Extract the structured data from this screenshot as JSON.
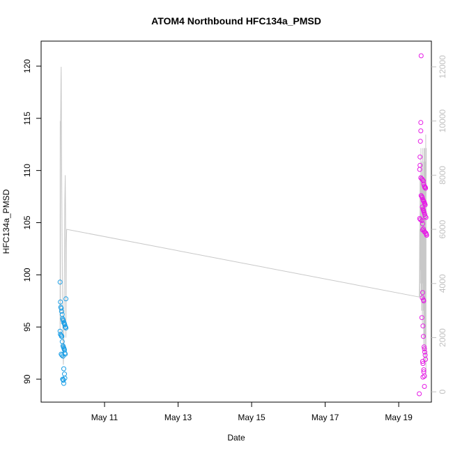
{
  "chart_data": {
    "type": "scatter",
    "title": "ATOM4 Northbound HFC134a_PMSD",
    "xlabel": "Date",
    "ylabel": "HFC134a_PMSD",
    "y2label": "",
    "x_origin": "May 9",
    "xlim": [
      "May 9, 06:36",
      "May 19, 21:20"
    ],
    "ylim": [
      87.8,
      122.4
    ],
    "y2lim": [
      -380,
      12950
    ],
    "x_ticks": [
      {
        "x": "May 11",
        "label": "May 11"
      },
      {
        "x": "May 13",
        "label": "May 13"
      },
      {
        "x": "May 15",
        "label": "May 15"
      },
      {
        "x": "May 17",
        "label": "May 17"
      },
      {
        "x": "May 19",
        "label": "May 19"
      }
    ],
    "y_ticks": [
      90,
      95,
      100,
      105,
      110,
      115,
      120
    ],
    "y2_ticks": [
      0,
      2000,
      4000,
      6000,
      8000,
      10000,
      12000
    ],
    "grid": false,
    "legend": "none",
    "colors": {
      "series1": "#1a9ee6",
      "series2": "#e61ae6",
      "altitude_line": "#c8c8c8",
      "right_axis": "#c0c0c0"
    },
    "series": [
      {
        "color": "#1a9ee6",
        "x": [
          "May 9, 18:58",
          "May 9, 19:12",
          "May 9, 19:26",
          "May 9, 19:41",
          "May 9, 19:55",
          "May 9, 20:24",
          "May 9, 20:38",
          "May 9, 20:53",
          "May 9, 21:07",
          "May 9, 21:22",
          "May 9, 21:36",
          "May 9, 21:50",
          "May 9, 22:05",
          "May 9, 22:19",
          "May 9, 22:34",
          "May 9, 22:48",
          "May 9, 18:58",
          "May 9, 19:12",
          "May 9, 19:41",
          "May 9, 19:55",
          "May 9, 20:10",
          "May 9, 20:24",
          "May 9, 20:53",
          "May 9, 21:07",
          "May 9, 21:22",
          "May 9, 21:36",
          "May 9, 21:50",
          "May 9, 22:05",
          "May 9, 22:19",
          "May 9, 19:41",
          "May 9, 20:10",
          "May 9, 20:53",
          "May 9, 21:22",
          "May 9, 21:50",
          "May 9, 22:05",
          "May 9, 20:38",
          "May 9, 20:53",
          "May 9, 21:07",
          "May 9, 21:22",
          "May 9, 22:48"
        ],
        "y": [
          99.3,
          97.4,
          96.9,
          96.8,
          96.5,
          96.2,
          95.8,
          95.7,
          95.6,
          95.4,
          95.4,
          95.3,
          95.2,
          95.0,
          95.0,
          94.9,
          94.6,
          94.3,
          94.2,
          94.1,
          94.1,
          93.6,
          93.2,
          93.1,
          93.0,
          92.9,
          92.8,
          92.5,
          92.4,
          92.4,
          92.3,
          92.2,
          91.0,
          90.5,
          90.1,
          90.0,
          90.0,
          89.9,
          89.6,
          97.7
        ]
      },
      {
        "color": "#e61ae6",
        "x": [
          "May 19, 14:38",
          "May 19, 14:24",
          "May 19, 14:24",
          "May 19, 14:09",
          "May 19, 13:55",
          "May 19, 13:55",
          "May 19, 13:41",
          "May 19, 14:24",
          "May 19, 15:07",
          "May 19, 15:36",
          "May 19, 16:05",
          "May 19, 16:19",
          "May 19, 16:48",
          "May 19, 17:02",
          "May 19, 17:17",
          "May 19, 17:31",
          "May 19, 14:38",
          "May 19, 15:07",
          "May 19, 15:22",
          "May 19, 15:50",
          "May 19, 16:05",
          "May 19, 16:34",
          "May 19, 16:48",
          "May 19, 17:02",
          "May 19, 17:17",
          "May 19, 15:22",
          "May 19, 15:50",
          "May 19, 16:19",
          "May 19, 16:34",
          "May 19, 17:02",
          "May 19, 17:17",
          "May 19, 17:46",
          "May 19, 13:41",
          "May 19, 14:09",
          "May 19, 15:07",
          "May 19, 15:36",
          "May 19, 16:05",
          "May 19, 16:34",
          "May 19, 17:02",
          "May 19, 17:46",
          "May 19, 18:00",
          "May 19, 18:14",
          "May 19, 15:36",
          "May 19, 15:22",
          "May 19, 16:05",
          "May 19, 16:19",
          "May 19, 15:07",
          "May 19, 15:50",
          "May 19, 16:05",
          "May 19, 16:34",
          "May 19, 16:48",
          "May 19, 17:02",
          "May 19, 17:17",
          "May 19, 17:31",
          "May 19, 15:36",
          "May 19, 15:50",
          "May 19, 16:19",
          "May 19, 16:19",
          "May 19, 16:48",
          "May 19, 15:50",
          "May 19, 16:48",
          "May 19, 13:26",
          "May 19, 15:36",
          "May 19, 16:05"
        ],
        "y": [
          121.0,
          114.6,
          113.8,
          112.8,
          111.3,
          110.5,
          110.1,
          109.3,
          109.2,
          109.1,
          109.0,
          108.7,
          108.5,
          108.4,
          108.4,
          108.3,
          107.6,
          107.5,
          107.4,
          107.2,
          107.1,
          107.0,
          106.9,
          106.8,
          106.7,
          106.5,
          106.3,
          106.1,
          106.0,
          105.8,
          105.6,
          105.5,
          105.4,
          105.3,
          105.2,
          104.9,
          104.4,
          104.2,
          104.1,
          104.0,
          103.9,
          103.8,
          98.3,
          97.8,
          97.6,
          97.5,
          95.9,
          95.1,
          94.1,
          93.1,
          92.9,
          92.6,
          92.3,
          91.9,
          91.7,
          91.5,
          90.9,
          90.7,
          90.3,
          90.2,
          89.3,
          88.6,
          104.3,
          106.2
        ]
      }
    ],
    "altitude_line": {
      "color": "#c8c8c8",
      "x": [
        "May 9, 18:58",
        "May 9, 19:05",
        "May 9, 19:12",
        "May 9, 19:19",
        "May 9, 19:26",
        "May 9, 19:34",
        "May 9, 19:41",
        "May 9, 19:55",
        "May 9, 20:10",
        "May 9, 20:24",
        "May 9, 20:38",
        "May 9, 20:53",
        "May 9, 21:07",
        "May 9, 21:22",
        "May 9, 21:36",
        "May 9, 21:50",
        "May 9, 22:05",
        "May 9, 22:19",
        "May 9, 22:34",
        "May 9, 22:41",
        "May 9, 22:48",
        "May 9, 23:02",
        "May 9, 23:17",
        "May 9, 23:24",
        "May 19, 13:26",
        "May 19, 13:34",
        "May 19, 13:41",
        "May 19, 13:48",
        "May 19, 13:55",
        "May 19, 14:02",
        "May 19, 14:09",
        "May 19, 14:17",
        "May 19, 14:24",
        "May 19, 14:31",
        "May 19, 14:38",
        "May 19, 14:46",
        "May 19, 14:53",
        "May 19, 15:00",
        "May 19, 15:07",
        "May 19, 15:14",
        "May 19, 15:22",
        "May 19, 15:29",
        "May 19, 15:36",
        "May 19, 15:43",
        "May 19, 15:50",
        "May 19, 15:58",
        "May 19, 16:05",
        "May 19, 16:12",
        "May 19, 16:19",
        "May 19, 16:26",
        "May 19, 16:34",
        "May 19, 16:41",
        "May 19, 16:48",
        "May 19, 16:55",
        "May 19, 17:02",
        "May 19, 17:10",
        "May 19, 17:17",
        "May 19, 17:24",
        "May 19, 17:31",
        "May 19, 17:38",
        "May 19, 17:46",
        "May 19, 17:53",
        "May 19, 18:00"
      ],
      "y": [
        2000,
        10000,
        2500,
        10000,
        10500,
        11500,
        12000,
        9000,
        7000,
        5000,
        3000,
        1500,
        1000,
        1500,
        3000,
        5000,
        7000,
        8000,
        6500,
        3000,
        2000,
        5500,
        6000,
        6000,
        3500,
        4000,
        6000,
        3500,
        8000,
        4000,
        7500,
        8000,
        4500,
        9000,
        3500,
        6000,
        8500,
        3000,
        7000,
        5000,
        8000,
        2500,
        7500,
        9000,
        4000,
        6000,
        3000,
        7500,
        1500,
        8500,
        5000,
        9000,
        2000,
        6000,
        9000,
        1000,
        4000,
        8500,
        2000,
        9500,
        500,
        7000,
        9000
      ]
    }
  }
}
